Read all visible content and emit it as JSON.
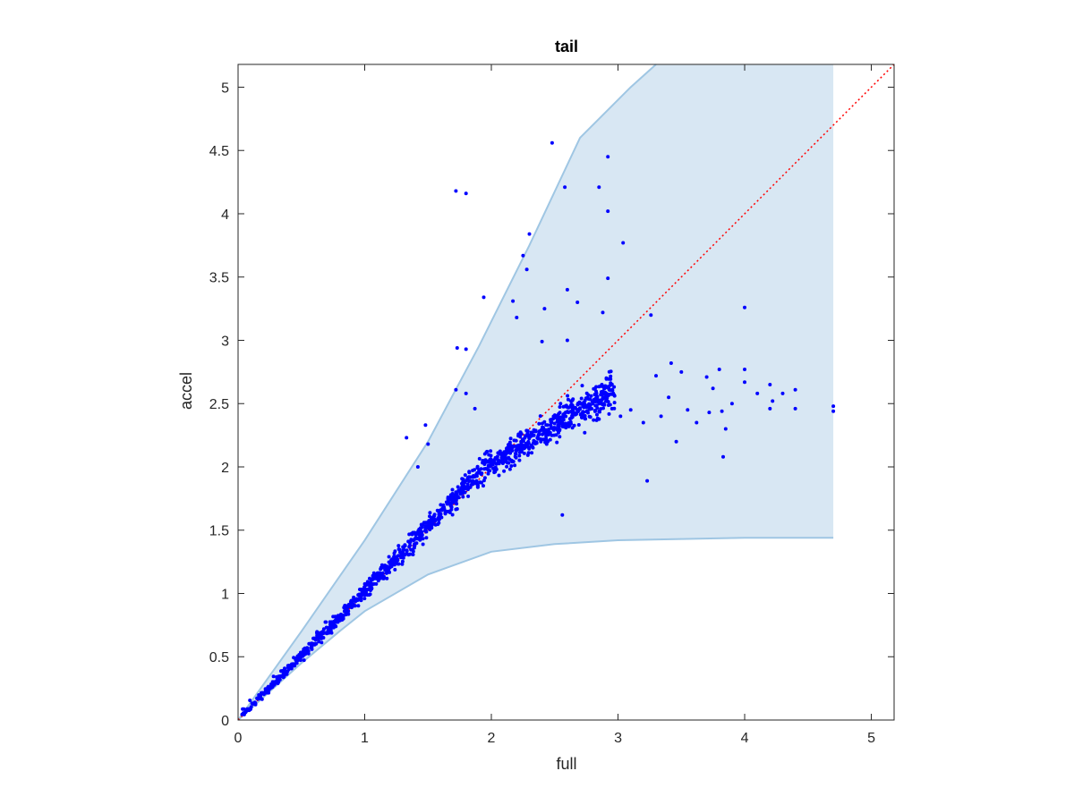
{
  "chart_data": {
    "type": "scatter",
    "title": "tail",
    "xlabel": "full",
    "ylabel": "accel",
    "xlim": [
      0,
      5.18
    ],
    "ylim": [
      0,
      5.18
    ],
    "xticks": [
      0,
      1,
      2,
      3,
      4,
      5
    ],
    "yticks": [
      0,
      0.5,
      1,
      1.5,
      2,
      2.5,
      3,
      3.5,
      4,
      4.5,
      5
    ],
    "xtick_labels": [
      "0",
      "1",
      "2",
      "3",
      "4",
      "5"
    ],
    "ytick_labels": [
      "0",
      "0.5",
      "1",
      "1.5",
      "2",
      "2.5",
      "3",
      "3.5",
      "4",
      "4.5",
      "5"
    ],
    "grid": false,
    "colors": {
      "points": "#0000ff",
      "band_fill": "#d8e7f3",
      "band_edge": "#9fc6e3",
      "reference_line": "#ff0000",
      "axes": "#262626"
    },
    "band": {
      "upper": [
        [
          0,
          0
        ],
        [
          0.5,
          0.7
        ],
        [
          1,
          1.42
        ],
        [
          1.5,
          2.2
        ],
        [
          1.9,
          2.95
        ],
        [
          2.3,
          3.75
        ],
        [
          2.7,
          4.6
        ],
        [
          3.1,
          5.0
        ],
        [
          3.3,
          5.18
        ],
        [
          4.7,
          5.18
        ]
      ],
      "lower": [
        [
          0,
          0
        ],
        [
          0.5,
          0.45
        ],
        [
          0.8,
          0.7
        ],
        [
          1.0,
          0.86
        ],
        [
          1.5,
          1.15
        ],
        [
          2.0,
          1.33
        ],
        [
          2.5,
          1.39
        ],
        [
          3.0,
          1.42
        ],
        [
          3.5,
          1.43
        ],
        [
          4.0,
          1.44
        ],
        [
          4.7,
          1.44
        ]
      ]
    },
    "reference_line": {
      "x": [
        0,
        5.18
      ],
      "y": [
        0,
        5.18
      ]
    },
    "series": [
      {
        "values": [
          [
            2.48,
            4.56
          ],
          [
            1.72,
            4.18
          ],
          [
            1.8,
            4.16
          ],
          [
            2.58,
            4.21
          ],
          [
            2.85,
            4.21
          ],
          [
            2.92,
            4.45
          ],
          [
            2.92,
            4.02
          ],
          [
            3.04,
            3.77
          ],
          [
            2.92,
            3.49
          ],
          [
            2.3,
            3.84
          ],
          [
            2.25,
            3.67
          ],
          [
            2.28,
            3.56
          ],
          [
            1.94,
            3.34
          ],
          [
            2.17,
            3.31
          ],
          [
            2.2,
            3.18
          ],
          [
            2.6,
            3.4
          ],
          [
            2.68,
            3.3
          ],
          [
            2.88,
            3.22
          ],
          [
            2.42,
            3.25
          ],
          [
            3.26,
            3.2
          ],
          [
            4.0,
            3.26
          ],
          [
            1.73,
            2.94
          ],
          [
            1.8,
            2.93
          ],
          [
            2.4,
            2.99
          ],
          [
            2.6,
            3.0
          ],
          [
            1.72,
            2.61
          ],
          [
            1.8,
            2.58
          ],
          [
            1.87,
            2.46
          ],
          [
            1.48,
            2.33
          ],
          [
            1.5,
            2.18
          ],
          [
            1.33,
            2.23
          ],
          [
            1.42,
            2.0
          ],
          [
            3.42,
            2.82
          ],
          [
            3.5,
            2.75
          ],
          [
            3.7,
            2.71
          ],
          [
            3.8,
            2.77
          ],
          [
            4.0,
            2.77
          ],
          [
            4.0,
            2.67
          ],
          [
            4.2,
            2.65
          ],
          [
            4.4,
            2.61
          ],
          [
            4.1,
            2.58
          ],
          [
            4.3,
            2.58
          ],
          [
            4.7,
            2.48
          ],
          [
            4.7,
            2.44
          ],
          [
            4.4,
            2.46
          ],
          [
            4.2,
            2.46
          ],
          [
            3.85,
            2.3
          ],
          [
            3.83,
            2.08
          ],
          [
            3.46,
            2.2
          ],
          [
            3.23,
            1.89
          ],
          [
            3.34,
            2.4
          ],
          [
            3.55,
            2.45
          ],
          [
            3.72,
            2.43
          ],
          [
            3.82,
            2.44
          ],
          [
            3.9,
            2.5
          ],
          [
            4.22,
            2.52
          ],
          [
            2.56,
            1.62
          ],
          [
            3.02,
            2.4
          ],
          [
            3.1,
            2.45
          ],
          [
            3.2,
            2.35
          ],
          [
            3.4,
            2.55
          ],
          [
            3.62,
            2.35
          ],
          [
            3.3,
            2.72
          ],
          [
            3.75,
            2.62
          ]
        ]
      }
    ]
  }
}
